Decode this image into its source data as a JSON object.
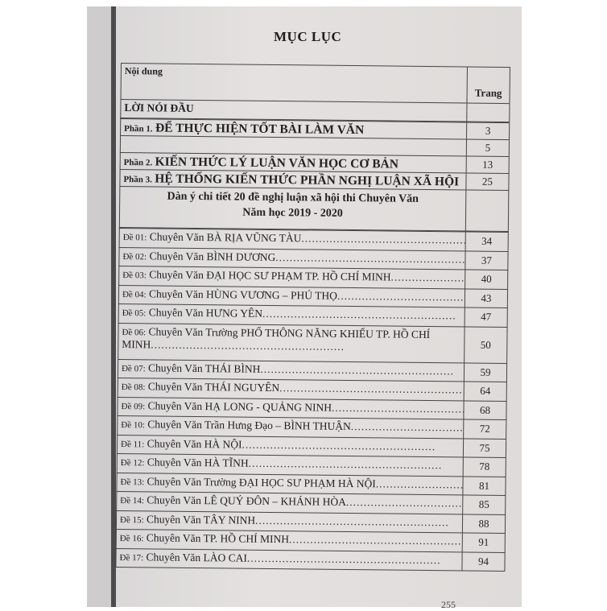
{
  "page": {
    "title": "MỤC LỤC",
    "page_number": "255"
  },
  "table": {
    "header_content": "Nội dung",
    "header_page": "Trang",
    "intro": {
      "label": "LỜI NÓI ĐẦU"
    },
    "parts": [
      {
        "prefix": "Phần 1.",
        "title": "ĐỂ THỰC HIỆN TỐT BÀI LÀM VĂN",
        "page": "3"
      },
      {
        "prefix": "",
        "title": "",
        "page": "5"
      },
      {
        "prefix": "Phần 2.",
        "title": "KIẾN THỨC LÝ LUẬN VĂN HỌC CƠ BẢN",
        "page": "13"
      },
      {
        "prefix": "Phần 3.",
        "title": "HỆ THỐNG KIẾN THỨC PHẦN NGHỊ LUẬN XÃ HỘI",
        "page": "25"
      }
    ],
    "subtitle_1": "Dàn ý chi tiết 20 đề nghị luận xã hội thi Chuyên Văn",
    "subtitle_2": "Năm học 2019 - 2020",
    "entries": [
      {
        "num": "Đề 01:",
        "text": "Chuyên Văn BÀ RỊA VŨNG TÀU",
        "page": "34"
      },
      {
        "num": "Đề 02:",
        "text": "Chuyên Văn BÌNH DƯƠNG",
        "page": "37"
      },
      {
        "num": "Đề 03:",
        "text": "Chuyên Văn ĐẠI HỌC SƯ PHẠM TP. HỒ CHÍ MINH",
        "page": "40"
      },
      {
        "num": "Đề 04:",
        "text": "Chuyên Văn HÙNG VƯƠNG – PHÚ THỌ",
        "page": "43"
      },
      {
        "num": "Đề 05:",
        "text": "Chuyên Văn HƯNG YÊN",
        "page": "47"
      },
      {
        "num": "Đề 06:",
        "text": "Chuyên Văn Trường PHỔ THÔNG NĂNG KHIẾU TP. HỒ CHÍ",
        "text2": "MINH",
        "page": "50"
      },
      {
        "num": "Đề 07:",
        "text": "Chuyên Văn THÁI BÌNH",
        "page": "59"
      },
      {
        "num": "Đề 08:",
        "text": "Chuyên Văn THÁI NGUYÊN",
        "page": "64"
      },
      {
        "num": "Đề 09:",
        "text": "Chuyên Văn HẠ LONG - QUẢNG NINH",
        "page": "68"
      },
      {
        "num": "Đề 10:",
        "text": "Chuyên Văn Trần Hưng Đạo – BÌNH THUẬN",
        "page": "72"
      },
      {
        "num": "Đề 11:",
        "text": "Chuyên Văn HÀ NỘI",
        "page": "75"
      },
      {
        "num": "Đề 12:",
        "text": "Chuyên Văn HÀ TĨNH",
        "page": "78"
      },
      {
        "num": "Đề 13:",
        "text": "Chuyên Văn Trường ĐẠI HỌC SƯ PHẠM HÀ NỘI",
        "page": "81"
      },
      {
        "num": "Đề 14:",
        "text": "Chuyên Văn LÊ QUÝ ĐÔN – KHÁNH HÒA",
        "page": "85"
      },
      {
        "num": "Đề 15:",
        "text": "Chuyên Văn TÂY NINH",
        "page": "88"
      },
      {
        "num": "Đề 16:",
        "text": "Chuyên Văn TP. HỒ CHÍ MINH",
        "page": "91"
      },
      {
        "num": "Đề 17:",
        "text": "Chuyên Văn LÀO CAI",
        "page": "94"
      }
    ]
  }
}
